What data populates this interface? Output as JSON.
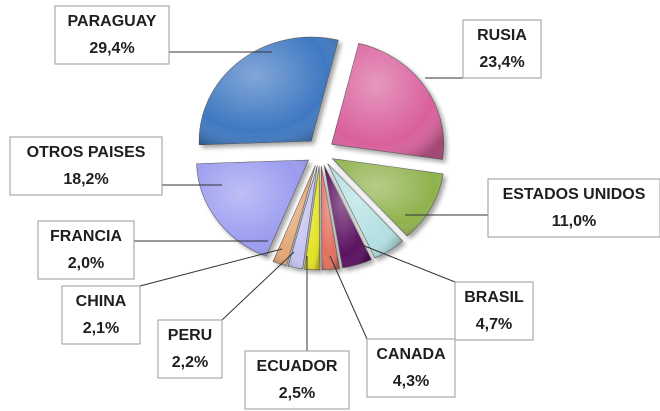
{
  "chart_data": {
    "type": "pie",
    "categories": [
      "RUSIA",
      "ESTADOS UNIDOS",
      "BRASIL",
      "CANADA",
      "ECUADOR",
      "PERU",
      "CHINA",
      "FRANCIA",
      "OTROS PAISES",
      "PARAGUAY"
    ],
    "values": [
      23.4,
      11.0,
      4.7,
      4.3,
      2.5,
      2.2,
      2.1,
      2.0,
      18.2,
      29.4
    ],
    "value_labels": [
      "23,4%",
      "11,0%",
      "4,7%",
      "4,3%",
      "2,5%",
      "2,2%",
      "2,1%",
      "2,0%",
      "18,2%",
      "29,4%"
    ],
    "colors": [
      "#d9609c",
      "#8fb24c",
      "#b3e0e2",
      "#5b1160",
      "#e2705f",
      "#e3e225",
      "#c4c4f2",
      "#e3a676",
      "#9b9cf0",
      "#3f78c2"
    ]
  }
}
